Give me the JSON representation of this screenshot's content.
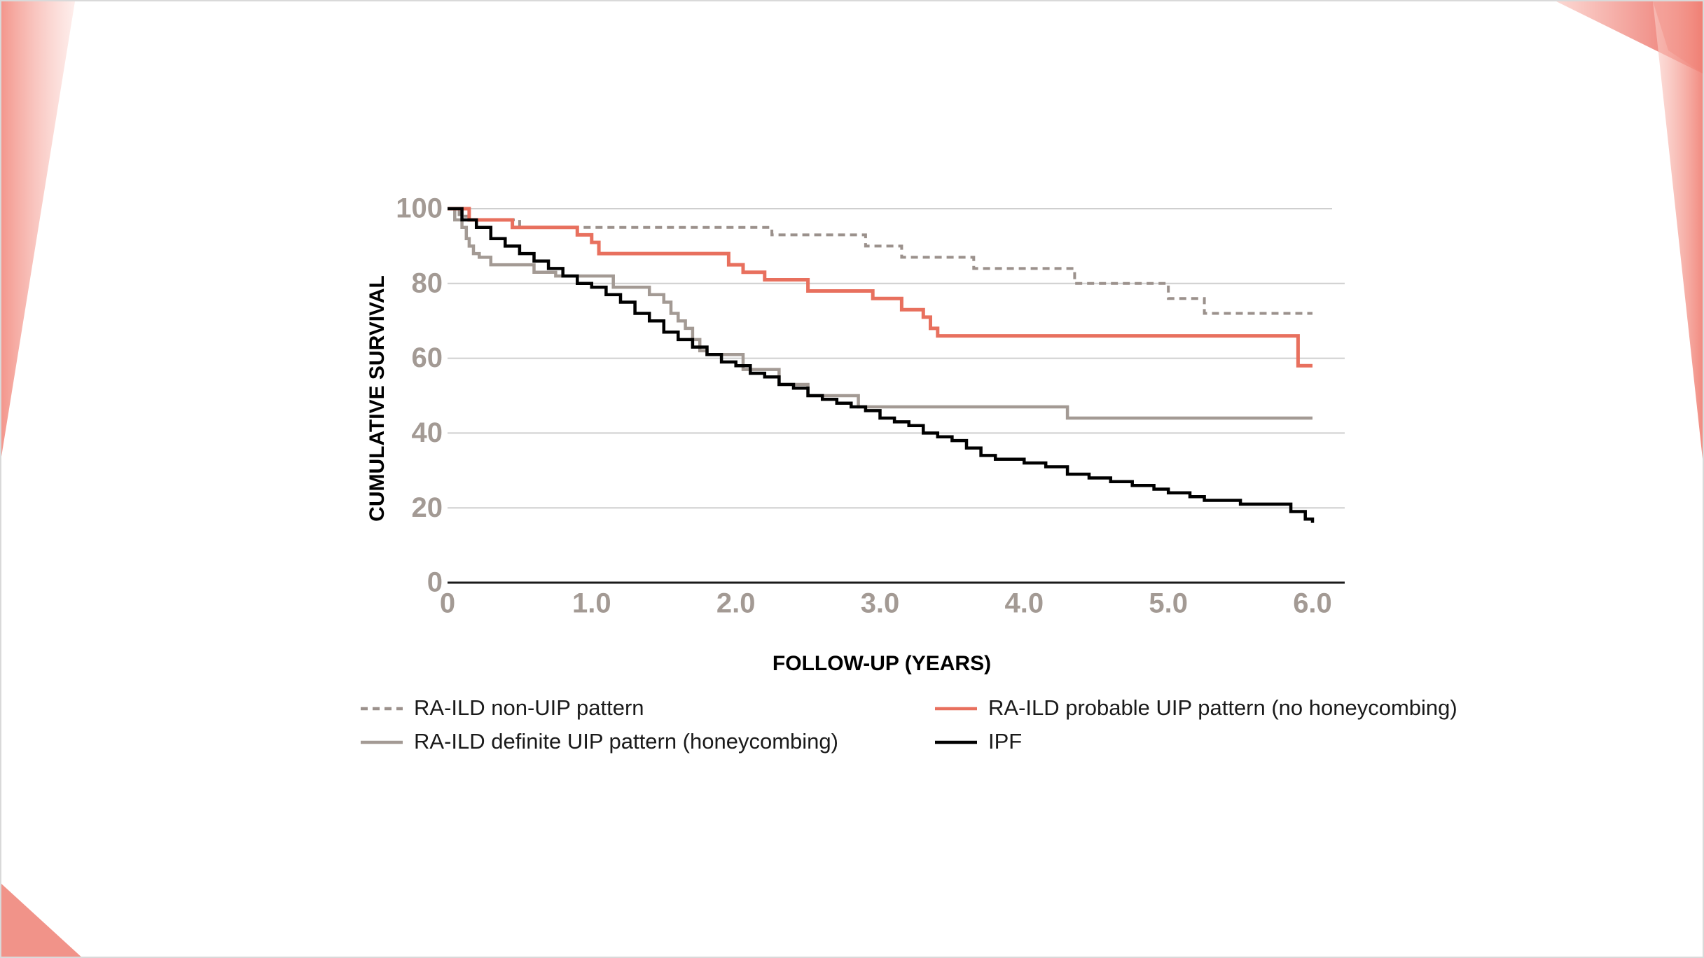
{
  "colors": {
    "non_uip": "#9b918c",
    "probable_uip": "#e8705e",
    "definite_uip": "#a39a94",
    "ipf": "#000000",
    "tick": "#a39a94",
    "grid": "#cfcfcf",
    "accent": "#e8554a"
  },
  "chart_data": {
    "type": "line",
    "step": true,
    "xlabel": "FOLLOW-UP (YEARS)",
    "ylabel": "CUMULATIVE SURVIVAL",
    "xlim": [
      0,
      6.0
    ],
    "ylim": [
      0,
      100
    ],
    "x_ticks": [
      {
        "value": 0,
        "label": "0"
      },
      {
        "value": 1.0,
        "label": "1.0"
      },
      {
        "value": 2.0,
        "label": "2.0"
      },
      {
        "value": 3.0,
        "label": "3.0"
      },
      {
        "value": 4.0,
        "label": "4.0"
      },
      {
        "value": 5.0,
        "label": "5.0"
      },
      {
        "value": 6.0,
        "label": "6.0"
      }
    ],
    "y_ticks": [
      {
        "value": 0,
        "label": "0"
      },
      {
        "value": 20,
        "label": "20"
      },
      {
        "value": 40,
        "label": "40"
      },
      {
        "value": 60,
        "label": "60"
      },
      {
        "value": 80,
        "label": "80"
      },
      {
        "value": 100,
        "label": "100"
      }
    ],
    "grid": "horizontal",
    "legend_position": "bottom",
    "series": [
      {
        "key": "non_uip",
        "name": "RA-ILD non-UIP pattern",
        "style": "dashed",
        "x": [
          0,
          0.08,
          0.15,
          0.5,
          2.25,
          2.9,
          3.15,
          3.65,
          4.35,
          5.0,
          5.25,
          6.0
        ],
        "y": [
          100,
          98,
          97,
          95,
          93,
          90,
          87,
          84,
          80,
          76,
          72,
          72
        ]
      },
      {
        "key": "probable_uip",
        "name": "RA-ILD probable UIP pattern (no honeycombing)",
        "style": "solid",
        "x": [
          0,
          0.15,
          0.45,
          0.9,
          1.0,
          1.05,
          1.95,
          2.05,
          2.2,
          2.5,
          2.95,
          3.15,
          3.3,
          3.35,
          3.4,
          5.85,
          5.9,
          6.0
        ],
        "y": [
          100,
          97,
          95,
          93,
          91,
          88,
          85,
          83,
          81,
          78,
          76,
          73,
          71,
          68,
          66,
          66,
          58,
          58
        ],
        "show_at": [
          2.2,
          3.35
        ]
      },
      {
        "key": "definite_uip",
        "name": "RA-ILD definite UIP pattern (honeycombing)",
        "style": "solid",
        "x": [
          0,
          0.05,
          0.1,
          0.13,
          0.15,
          0.18,
          0.22,
          0.3,
          0.6,
          0.75,
          1.15,
          1.4,
          1.5,
          1.55,
          1.6,
          1.65,
          1.7,
          1.75,
          1.8,
          2.05,
          2.3,
          2.5,
          2.85,
          3.2,
          4.3,
          6.0
        ],
        "y": [
          100,
          97,
          95,
          92,
          90,
          88,
          87,
          85,
          83,
          82,
          79,
          77,
          75,
          72,
          70,
          68,
          65,
          62,
          61,
          57,
          53,
          50,
          47,
          47,
          44,
          44
        ]
      },
      {
        "key": "ipf",
        "name": "IPF",
        "style": "solid",
        "x": [
          0,
          0.1,
          0.2,
          0.3,
          0.4,
          0.5,
          0.6,
          0.7,
          0.8,
          0.9,
          1.0,
          1.1,
          1.2,
          1.3,
          1.4,
          1.5,
          1.6,
          1.7,
          1.8,
          1.9,
          2.0,
          2.1,
          2.2,
          2.3,
          2.4,
          2.5,
          2.6,
          2.7,
          2.8,
          2.9,
          3.0,
          3.1,
          3.2,
          3.3,
          3.4,
          3.5,
          3.6,
          3.7,
          3.8,
          3.9,
          4.0,
          4.15,
          4.3,
          4.45,
          4.6,
          4.75,
          4.9,
          5.0,
          5.15,
          5.25,
          5.5,
          5.75,
          5.85,
          5.95,
          6.0
        ],
        "y": [
          100,
          97,
          95,
          92,
          90,
          88,
          86,
          84,
          82,
          80,
          79,
          77,
          75,
          72,
          70,
          67,
          65,
          63,
          61,
          59,
          58,
          56,
          55,
          53,
          52,
          50,
          49,
          48,
          47,
          46,
          44,
          43,
          42,
          40,
          39,
          38,
          36,
          34,
          33,
          33,
          32,
          31,
          29,
          28,
          27,
          26,
          25,
          24,
          23,
          22,
          21,
          21,
          19,
          17,
          16
        ]
      }
    ]
  }
}
